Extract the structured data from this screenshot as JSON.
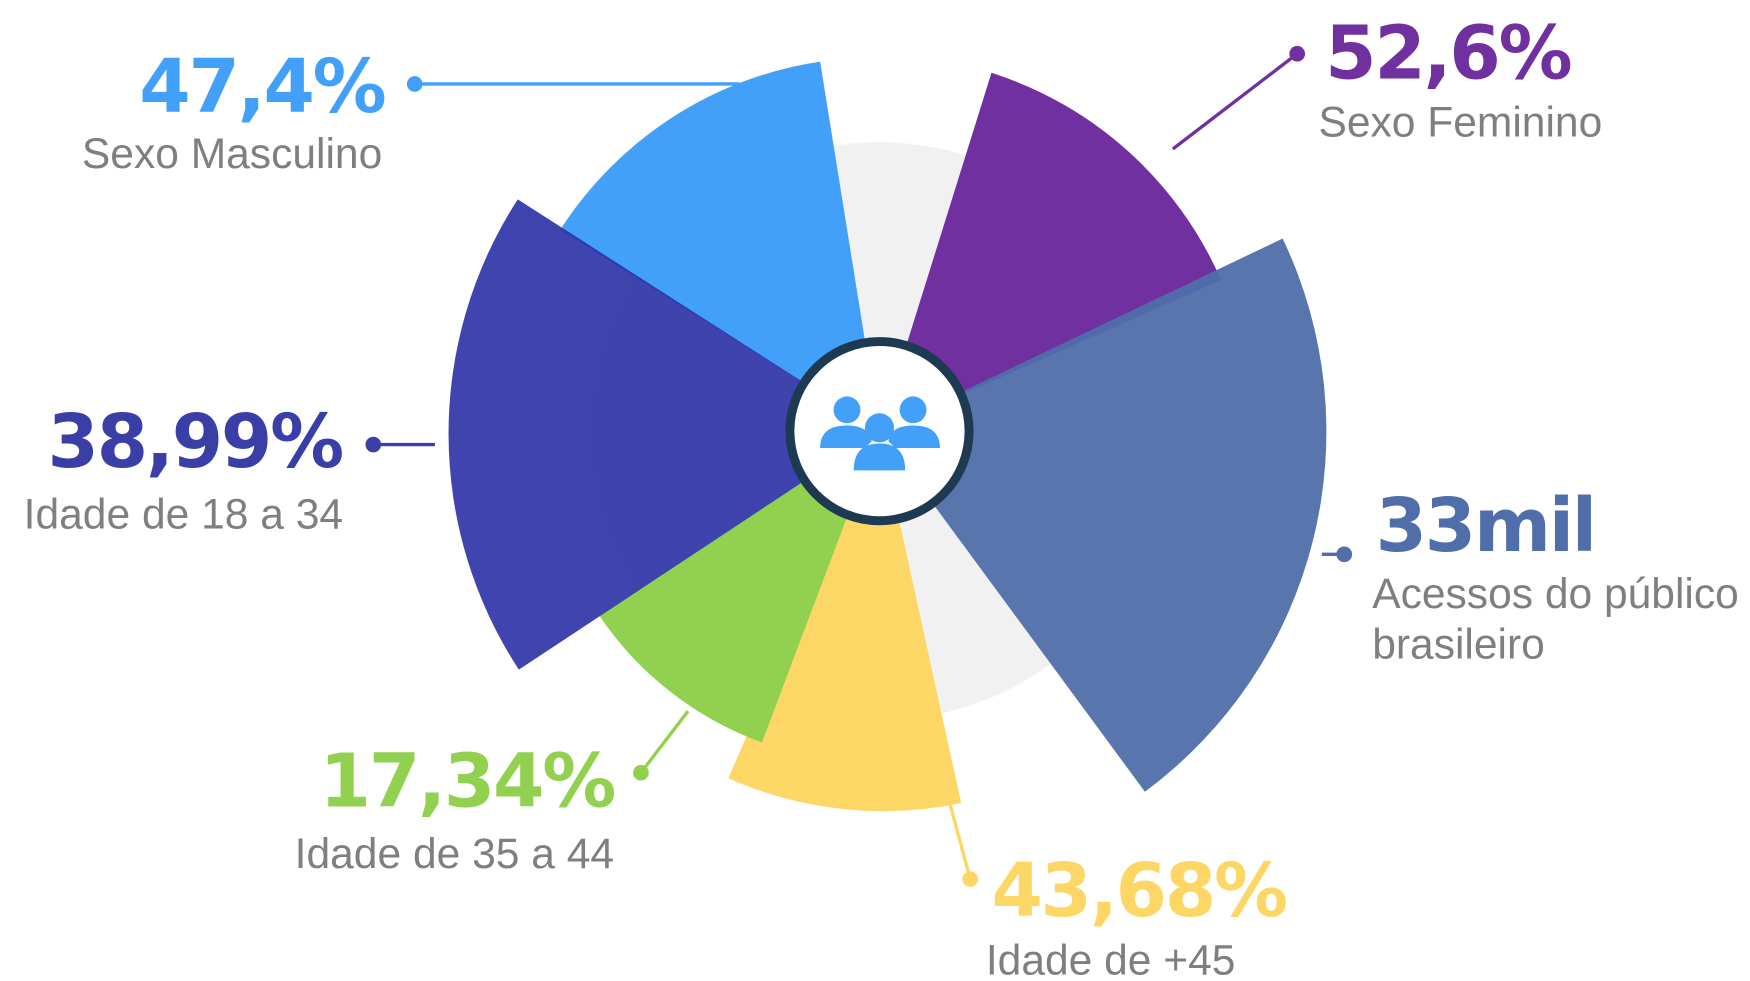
{
  "items": [
    {
      "value": "47,4%",
      "lines": [
        "Sexo Masculino"
      ]
    },
    {
      "value": "52,6%",
      "lines": [
        "Sexo Feminino"
      ]
    },
    {
      "value": "38,99%",
      "lines": [
        "Idade de 18 a 34"
      ]
    },
    {
      "value": "33mil",
      "lines": [
        "Acessos do público",
        "brasileiro"
      ]
    },
    {
      "value": "17,34%",
      "lines": [
        "Idade de 35 a 44"
      ]
    },
    {
      "value": "43,68%",
      "lines": [
        "Idade de +45"
      ]
    }
  ]
}
